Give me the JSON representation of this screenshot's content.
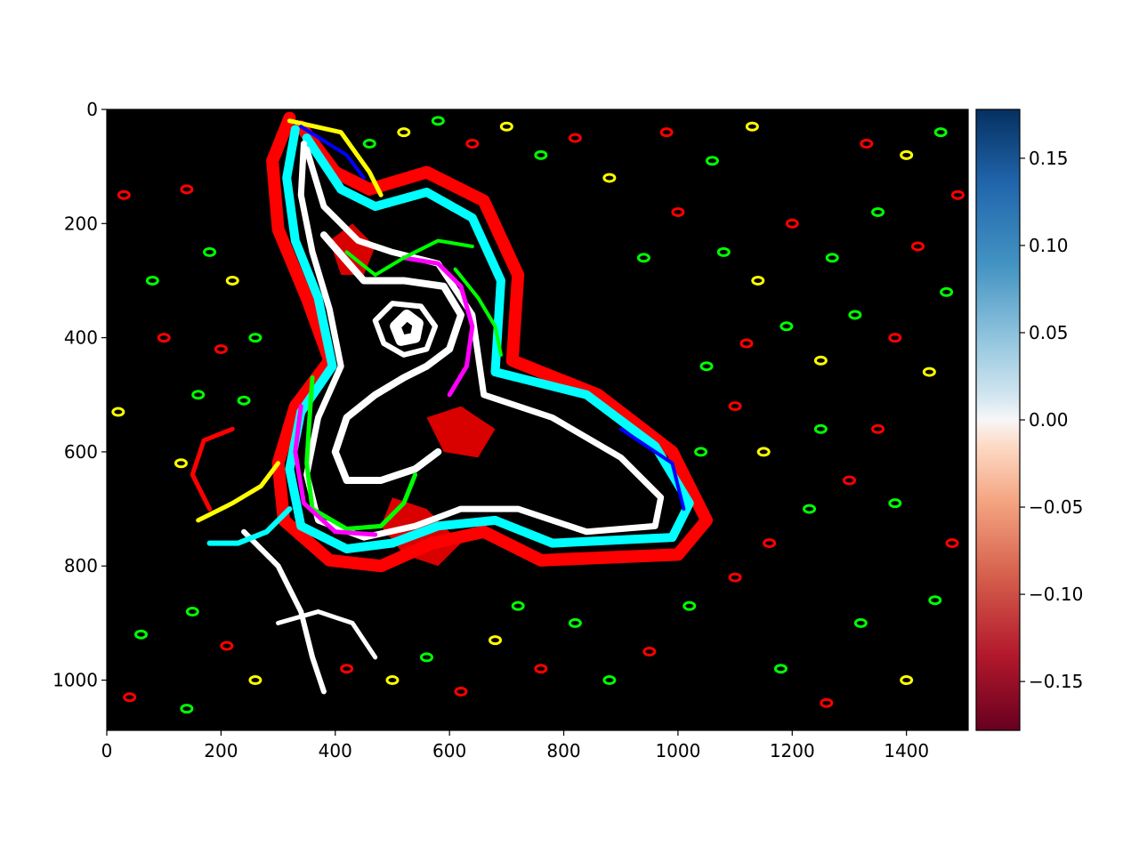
{
  "chart_data": {
    "type": "heatmap",
    "title": "",
    "xlabel": "",
    "ylabel": "",
    "image_extent": {
      "x": [
        0,
        1508
      ],
      "y": [
        1088,
        0
      ]
    },
    "x_ticks": [
      0,
      200,
      400,
      600,
      800,
      1000,
      1200,
      1400
    ],
    "x_tick_labels": [
      "0",
      "200",
      "400",
      "600",
      "800",
      "1000",
      "1200",
      "1400"
    ],
    "y_ticks": [
      0,
      200,
      400,
      600,
      800,
      1000
    ],
    "y_tick_labels": [
      "0",
      "200",
      "400",
      "600",
      "800",
      "1000"
    ],
    "colorbar": {
      "colormap": "RdBu",
      "range": [
        -0.178,
        0.178
      ],
      "ticks": [
        0.15,
        0.1,
        0.05,
        0.0,
        -0.05,
        -0.1,
        -0.15
      ],
      "tick_labels": [
        "0.15",
        "0.10",
        "0.05",
        "0.00",
        "−0.05",
        "−0.10",
        "−0.15"
      ]
    },
    "image_description_colors": {
      "background": "#000000",
      "edge_colors": [
        "#ff0000",
        "#00ffff",
        "#ffffff",
        "#ffff00",
        "#00ff00",
        "#ff00ff",
        "#0000ff"
      ]
    },
    "strokes": [
      {
        "color": "#ff0000",
        "width": 14,
        "points": [
          [
            320,
            15
          ],
          [
            290,
            90
          ],
          [
            300,
            210
          ],
          [
            350,
            330
          ],
          [
            390,
            440
          ],
          [
            330,
            520
          ],
          [
            300,
            620
          ],
          [
            310,
            720
          ],
          [
            390,
            790
          ],
          [
            480,
            800
          ],
          [
            570,
            760
          ],
          [
            660,
            740
          ],
          [
            760,
            790
          ],
          [
            1000,
            780
          ],
          [
            1050,
            720
          ],
          [
            990,
            600
          ],
          [
            860,
            500
          ],
          [
            710,
            440
          ],
          [
            720,
            290
          ],
          [
            660,
            160
          ],
          [
            560,
            110
          ],
          [
            460,
            140
          ],
          [
            400,
            110
          ],
          [
            340,
            30
          ]
        ]
      },
      {
        "color": "#00ffff",
        "width": 10,
        "points": [
          [
            330,
            35
          ],
          [
            315,
            120
          ],
          [
            330,
            230
          ],
          [
            370,
            330
          ],
          [
            395,
            450
          ],
          [
            340,
            530
          ],
          [
            320,
            630
          ],
          [
            340,
            730
          ],
          [
            420,
            770
          ],
          [
            500,
            760
          ],
          [
            580,
            730
          ],
          [
            680,
            720
          ],
          [
            780,
            760
          ],
          [
            990,
            750
          ],
          [
            1020,
            690
          ],
          [
            960,
            590
          ],
          [
            840,
            500
          ],
          [
            680,
            460
          ],
          [
            690,
            300
          ],
          [
            640,
            190
          ],
          [
            560,
            145
          ],
          [
            470,
            170
          ],
          [
            410,
            140
          ],
          [
            350,
            50
          ]
        ]
      },
      {
        "color": "#ffffff",
        "width": 7,
        "points": [
          [
            345,
            60
          ],
          [
            340,
            150
          ],
          [
            360,
            250
          ],
          [
            390,
            350
          ],
          [
            410,
            450
          ],
          [
            370,
            540
          ],
          [
            350,
            640
          ],
          [
            370,
            720
          ],
          [
            450,
            750
          ],
          [
            540,
            730
          ],
          [
            620,
            700
          ],
          [
            720,
            700
          ],
          [
            840,
            740
          ],
          [
            960,
            730
          ],
          [
            970,
            680
          ],
          [
            900,
            610
          ],
          [
            780,
            540
          ],
          [
            660,
            500
          ],
          [
            640,
            360
          ],
          [
            580,
            270
          ],
          [
            500,
            250
          ],
          [
            440,
            230
          ],
          [
            380,
            170
          ],
          [
            350,
            70
          ]
        ]
      },
      {
        "color": "#ffffff",
        "width": 8,
        "points": [
          [
            380,
            220
          ],
          [
            450,
            300
          ],
          [
            520,
            300
          ],
          [
            590,
            310
          ],
          [
            620,
            360
          ],
          [
            600,
            420
          ],
          [
            560,
            450
          ],
          [
            520,
            470
          ],
          [
            470,
            500
          ],
          [
            420,
            540
          ],
          [
            400,
            600
          ],
          [
            420,
            650
          ],
          [
            480,
            650
          ],
          [
            540,
            630
          ],
          [
            580,
            600
          ]
        ]
      },
      {
        "color": "#ffffff",
        "width": 6,
        "points": [
          [
            470,
            370
          ],
          [
            500,
            340
          ],
          [
            550,
            345
          ],
          [
            575,
            380
          ],
          [
            560,
            420
          ],
          [
            520,
            430
          ],
          [
            485,
            410
          ],
          [
            470,
            370
          ]
        ]
      },
      {
        "color": "#ffffff",
        "width": 12,
        "points": [
          [
            505,
            380
          ],
          [
            525,
            360
          ],
          [
            545,
            375
          ],
          [
            540,
            400
          ],
          [
            515,
            405
          ],
          [
            505,
            380
          ]
        ]
      },
      {
        "color": "#00ff00",
        "width": 5,
        "points": [
          [
            360,
            470
          ],
          [
            355,
            540
          ],
          [
            350,
            620
          ],
          [
            360,
            700
          ],
          [
            420,
            735
          ],
          [
            480,
            730
          ],
          [
            520,
            690
          ],
          [
            540,
            640
          ]
        ]
      },
      {
        "color": "#ff00ff",
        "width": 5,
        "points": [
          [
            520,
            260
          ],
          [
            580,
            270
          ],
          [
            620,
            310
          ],
          [
            640,
            380
          ],
          [
            630,
            450
          ],
          [
            600,
            500
          ]
        ]
      },
      {
        "color": "#ff00ff",
        "width": 5,
        "points": [
          [
            340,
            520
          ],
          [
            330,
            600
          ],
          [
            345,
            690
          ],
          [
            400,
            740
          ],
          [
            470,
            745
          ]
        ]
      },
      {
        "color": "#ffff00",
        "width": 5,
        "points": [
          [
            320,
            20
          ],
          [
            410,
            40
          ],
          [
            460,
            110
          ],
          [
            480,
            150
          ]
        ]
      },
      {
        "color": "#0000ff",
        "width": 4,
        "points": [
          [
            340,
            30
          ],
          [
            420,
            80
          ],
          [
            450,
            120
          ]
        ]
      },
      {
        "color": "#0000ff",
        "width": 4,
        "points": [
          [
            900,
            560
          ],
          [
            990,
            620
          ],
          [
            1010,
            700
          ]
        ]
      },
      {
        "color": "#ffffff",
        "width": 6,
        "points": [
          [
            240,
            740
          ],
          [
            300,
            800
          ],
          [
            340,
            880
          ],
          [
            360,
            960
          ],
          [
            380,
            1020
          ]
        ]
      },
      {
        "color": "#ffffff",
        "width": 5,
        "points": [
          [
            300,
            900
          ],
          [
            370,
            880
          ],
          [
            430,
            900
          ],
          [
            470,
            960
          ]
        ]
      },
      {
        "color": "#ffff00",
        "width": 5,
        "points": [
          [
            160,
            720
          ],
          [
            220,
            690
          ],
          [
            270,
            660
          ],
          [
            300,
            620
          ]
        ]
      },
      {
        "color": "#00ffff",
        "width": 6,
        "points": [
          [
            180,
            760
          ],
          [
            230,
            760
          ],
          [
            280,
            740
          ],
          [
            320,
            700
          ]
        ]
      },
      {
        "color": "#ff0000",
        "width": 5,
        "points": [
          [
            180,
            700
          ],
          [
            150,
            640
          ],
          [
            170,
            580
          ],
          [
            220,
            560
          ]
        ]
      },
      {
        "color": "#00ff00",
        "width": 4,
        "points": [
          [
            420,
            250
          ],
          [
            470,
            290
          ],
          [
            520,
            260
          ],
          [
            580,
            230
          ],
          [
            640,
            240
          ]
        ]
      },
      {
        "color": "#00ff00",
        "width": 4,
        "points": [
          [
            610,
            280
          ],
          [
            650,
            330
          ],
          [
            680,
            380
          ],
          [
            690,
            430
          ]
        ]
      }
    ],
    "blobs": [
      {
        "color": "#ff0000",
        "points": [
          [
            500,
            680
          ],
          [
            560,
            700
          ],
          [
            620,
            760
          ],
          [
            580,
            800
          ],
          [
            520,
            780
          ],
          [
            480,
            730
          ]
        ]
      },
      {
        "color": "#ff0000",
        "points": [
          [
            560,
            540
          ],
          [
            620,
            520
          ],
          [
            680,
            560
          ],
          [
            650,
            610
          ],
          [
            590,
            600
          ]
        ]
      },
      {
        "color": "#ff0000",
        "points": [
          [
            390,
            230
          ],
          [
            430,
            200
          ],
          [
            470,
            240
          ],
          [
            450,
            290
          ],
          [
            410,
            290
          ]
        ]
      }
    ],
    "specks": [
      {
        "x": 140,
        "y": 140,
        "c": "#ff0000"
      },
      {
        "x": 180,
        "y": 250,
        "c": "#00ff00"
      },
      {
        "x": 220,
        "y": 300,
        "c": "#ffff00"
      },
      {
        "x": 160,
        "y": 500,
        "c": "#00ff00"
      },
      {
        "x": 200,
        "y": 420,
        "c": "#ff0000"
      },
      {
        "x": 260,
        "y": 400,
        "c": "#00ff00"
      },
      {
        "x": 130,
        "y": 620,
        "c": "#ffff00"
      },
      {
        "x": 240,
        "y": 510,
        "c": "#00ff00"
      },
      {
        "x": 150,
        "y": 880,
        "c": "#00ff00"
      },
      {
        "x": 210,
        "y": 940,
        "c": "#ff0000"
      },
      {
        "x": 260,
        "y": 1000,
        "c": "#ffff00"
      },
      {
        "x": 140,
        "y": 1050,
        "c": "#00ff00"
      },
      {
        "x": 420,
        "y": 980,
        "c": "#ff0000"
      },
      {
        "x": 500,
        "y": 1000,
        "c": "#ffff00"
      },
      {
        "x": 560,
        "y": 960,
        "c": "#00ff00"
      },
      {
        "x": 620,
        "y": 1020,
        "c": "#ff0000"
      },
      {
        "x": 680,
        "y": 930,
        "c": "#ffff00"
      },
      {
        "x": 720,
        "y": 870,
        "c": "#00ff00"
      },
      {
        "x": 760,
        "y": 980,
        "c": "#ff0000"
      },
      {
        "x": 820,
        "y": 900,
        "c": "#00ff00"
      },
      {
        "x": 880,
        "y": 1000,
        "c": "#00ff00"
      },
      {
        "x": 950,
        "y": 950,
        "c": "#ff0000"
      },
      {
        "x": 1020,
        "y": 870,
        "c": "#00ff00"
      },
      {
        "x": 1100,
        "y": 820,
        "c": "#ff0000"
      },
      {
        "x": 1180,
        "y": 980,
        "c": "#00ff00"
      },
      {
        "x": 1260,
        "y": 1040,
        "c": "#ff0000"
      },
      {
        "x": 1320,
        "y": 900,
        "c": "#00ff00"
      },
      {
        "x": 1400,
        "y": 1000,
        "c": "#ffff00"
      },
      {
        "x": 1450,
        "y": 860,
        "c": "#00ff00"
      },
      {
        "x": 1480,
        "y": 760,
        "c": "#ff0000"
      },
      {
        "x": 1380,
        "y": 690,
        "c": "#00ff00"
      },
      {
        "x": 1300,
        "y": 650,
        "c": "#ff0000"
      },
      {
        "x": 1230,
        "y": 700,
        "c": "#00ff00"
      },
      {
        "x": 1150,
        "y": 600,
        "c": "#ffff00"
      },
      {
        "x": 1100,
        "y": 520,
        "c": "#ff0000"
      },
      {
        "x": 1050,
        "y": 450,
        "c": "#00ff00"
      },
      {
        "x": 1120,
        "y": 410,
        "c": "#ff0000"
      },
      {
        "x": 1190,
        "y": 380,
        "c": "#00ff00"
      },
      {
        "x": 1250,
        "y": 440,
        "c": "#ffff00"
      },
      {
        "x": 1310,
        "y": 360,
        "c": "#00ff00"
      },
      {
        "x": 1380,
        "y": 400,
        "c": "#ff0000"
      },
      {
        "x": 1440,
        "y": 460,
        "c": "#ffff00"
      },
      {
        "x": 1470,
        "y": 320,
        "c": "#00ff00"
      },
      {
        "x": 1420,
        "y": 240,
        "c": "#ff0000"
      },
      {
        "x": 1350,
        "y": 180,
        "c": "#00ff00"
      },
      {
        "x": 1270,
        "y": 260,
        "c": "#00ff00"
      },
      {
        "x": 1200,
        "y": 200,
        "c": "#ff0000"
      },
      {
        "x": 1140,
        "y": 300,
        "c": "#ffff00"
      },
      {
        "x": 1080,
        "y": 250,
        "c": "#00ff00"
      },
      {
        "x": 1000,
        "y": 180,
        "c": "#ff0000"
      },
      {
        "x": 940,
        "y": 260,
        "c": "#00ff00"
      },
      {
        "x": 880,
        "y": 120,
        "c": "#ffff00"
      },
      {
        "x": 820,
        "y": 50,
        "c": "#ff0000"
      },
      {
        "x": 760,
        "y": 80,
        "c": "#00ff00"
      },
      {
        "x": 700,
        "y": 30,
        "c": "#ffff00"
      },
      {
        "x": 640,
        "y": 60,
        "c": "#ff0000"
      },
      {
        "x": 580,
        "y": 20,
        "c": "#00ff00"
      },
      {
        "x": 520,
        "y": 40,
        "c": "#ffff00"
      },
      {
        "x": 460,
        "y": 60,
        "c": "#00ff00"
      },
      {
        "x": 980,
        "y": 40,
        "c": "#ff0000"
      },
      {
        "x": 1060,
        "y": 90,
        "c": "#00ff00"
      },
      {
        "x": 1130,
        "y": 30,
        "c": "#ffff00"
      },
      {
        "x": 1330,
        "y": 60,
        "c": "#ff0000"
      },
      {
        "x": 1400,
        "y": 80,
        "c": "#ffff00"
      },
      {
        "x": 1460,
        "y": 40,
        "c": "#00ff00"
      },
      {
        "x": 1490,
        "y": 150,
        "c": "#ff0000"
      },
      {
        "x": 60,
        "y": 920,
        "c": "#00ff00"
      },
      {
        "x": 40,
        "y": 1030,
        "c": "#ff0000"
      },
      {
        "x": 20,
        "y": 530,
        "c": "#ffff00"
      },
      {
        "x": 30,
        "y": 150,
        "c": "#ff0000"
      },
      {
        "x": 80,
        "y": 300,
        "c": "#00ff00"
      },
      {
        "x": 100,
        "y": 400,
        "c": "#ff0000"
      },
      {
        "x": 1160,
        "y": 760,
        "c": "#ff0000"
      },
      {
        "x": 1250,
        "y": 560,
        "c": "#00ff00"
      },
      {
        "x": 1350,
        "y": 560,
        "c": "#ff0000"
      },
      {
        "x": 1040,
        "y": 600,
        "c": "#00ff00"
      }
    ]
  }
}
